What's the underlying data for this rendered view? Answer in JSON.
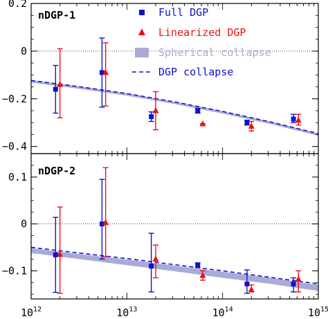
{
  "chart_data": {
    "type": "scatter",
    "x_scale": "log",
    "xlim": [
      1000000000000.0,
      1000000000000000.0
    ],
    "x_tick_labels": [
      {
        "value": 1000000000000.0,
        "base": "10",
        "exp": "12"
      },
      {
        "value": 10000000000000.0,
        "base": "10",
        "exp": "13"
      },
      {
        "value": 100000000000000.0,
        "base": "10",
        "exp": "14"
      },
      {
        "value": 1000000000000000.0,
        "base": "10",
        "exp": "15"
      }
    ],
    "colors": {
      "full_dgp": "#1111cc",
      "linearized_dgp": "#ee1111",
      "spherical_collapse": "#aaaad8",
      "dgp_collapse": "#1111cc"
    },
    "legend": [
      {
        "key": "full_dgp",
        "label": "Full DGP",
        "marker": "square",
        "color": "#1111cc"
      },
      {
        "key": "linearized_dgp",
        "label": "Linearized DGP",
        "marker": "triangle",
        "color": "#ee1111"
      },
      {
        "key": "spherical_collapse",
        "label": "Spherical collapse",
        "marker": "band",
        "color": "#aaaad8"
      },
      {
        "key": "dgp_collapse",
        "label": "DGP collapse",
        "marker": "dashed-line",
        "color": "#1111cc"
      }
    ],
    "panels": [
      {
        "label": "nDGP-1",
        "ylim": [
          -0.43,
          0.2
        ],
        "y_ticks": [
          0.2,
          0,
          -0.2,
          -0.4
        ],
        "y_tick_labels": [
          "0.2",
          "0",
          "−0.2",
          "−0.4"
        ],
        "zero_line": true,
        "series": [
          {
            "key": "full_dgp",
            "points": [
              {
                "x": 1800000000000.0,
                "y": -0.16,
                "ylo": -0.26,
                "yhi": -0.06
              },
              {
                "x": 5500000000000.0,
                "y": -0.09,
                "ylo": -0.235,
                "yhi": 0.055
              },
              {
                "x": 18000000000000.0,
                "y": -0.275,
                "ylo": -0.295,
                "yhi": -0.255
              },
              {
                "x": 55000000000000.0,
                "y": -0.25,
                "ylo": -0.26,
                "yhi": -0.24
              },
              {
                "x": 180000000000000.0,
                "y": -0.3,
                "ylo": -0.31,
                "yhi": -0.29
              },
              {
                "x": 550000000000000.0,
                "y": -0.285,
                "ylo": -0.3,
                "yhi": -0.265
              }
            ]
          },
          {
            "key": "linearized_dgp",
            "points": [
              {
                "x": 2000000000000.0,
                "y": -0.14,
                "ylo": -0.28,
                "yhi": 0.01
              },
              {
                "x": 6000000000000.0,
                "y": -0.09,
                "ylo": -0.23,
                "yhi": 0.035
              },
              {
                "x": 20000000000000.0,
                "y": -0.25,
                "ylo": -0.33,
                "yhi": -0.17
              },
              {
                "x": 62000000000000.0,
                "y": -0.305,
                "ylo": -0.305,
                "yhi": -0.305
              },
              {
                "x": 200000000000000.0,
                "y": -0.315,
                "ylo": -0.335,
                "yhi": -0.295
              },
              {
                "x": 620000000000000.0,
                "y": -0.29,
                "ylo": -0.31,
                "yhi": -0.265
              }
            ]
          },
          {
            "key": "spherical_collapse",
            "x": [
              1000000000000.0,
              3160000000000.0,
              10000000000000.0,
              31600000000000.0,
              100000000000000.0,
              316000000000000.0,
              1000000000000000.0
            ],
            "y_low": [
              -0.132,
              -0.158,
              -0.187,
              -0.222,
              -0.262,
              -0.306,
              -0.355
            ],
            "y_high": [
              -0.122,
              -0.148,
              -0.177,
              -0.212,
              -0.252,
              -0.296,
              -0.345
            ]
          },
          {
            "key": "dgp_collapse",
            "x": [
              1000000000000.0,
              3160000000000.0,
              10000000000000.0,
              31600000000000.0,
              100000000000000.0,
              316000000000000.0,
              1000000000000000.0
            ],
            "y": [
              -0.123,
              -0.149,
              -0.178,
              -0.213,
              -0.253,
              -0.297,
              -0.346
            ]
          }
        ]
      },
      {
        "label": "nDGP-2",
        "ylim": [
          -0.16,
          0.15
        ],
        "y_ticks": [
          0.1,
          0,
          -0.1
        ],
        "y_tick_labels": [
          "0.1",
          "0",
          "−0.1"
        ],
        "zero_line": true,
        "series": [
          {
            "key": "full_dgp",
            "points": [
              {
                "x": 1800000000000.0,
                "y": -0.066,
                "ylo": -0.146,
                "yhi": 0.014
              },
              {
                "x": 5500000000000.0,
                "y": 0.0,
                "ylo": -0.075,
                "yhi": 0.095
              },
              {
                "x": 18000000000000.0,
                "y": -0.09,
                "ylo": -0.145,
                "yhi": -0.02
              },
              {
                "x": 55000000000000.0,
                "y": -0.088,
                "ylo": -0.093,
                "yhi": -0.083
              },
              {
                "x": 180000000000000.0,
                "y": -0.128,
                "ylo": -0.148,
                "yhi": -0.098
              },
              {
                "x": 550000000000000.0,
                "y": -0.128,
                "ylo": -0.145,
                "yhi": -0.115
              }
            ]
          },
          {
            "key": "linearized_dgp",
            "points": [
              {
                "x": 2000000000000.0,
                "y": -0.065,
                "ylo": -0.148,
                "yhi": 0.036
              },
              {
                "x": 6000000000000.0,
                "y": 0.003,
                "ylo": -0.07,
                "yhi": 0.12
              },
              {
                "x": 20000000000000.0,
                "y": -0.075,
                "ylo": -0.115,
                "yhi": -0.045
              },
              {
                "x": 62000000000000.0,
                "y": -0.11,
                "ylo": -0.12,
                "yhi": -0.1
              },
              {
                "x": 200000000000000.0,
                "y": -0.14,
                "ylo": -0.145,
                "yhi": -0.13
              },
              {
                "x": 620000000000000.0,
                "y": -0.118,
                "ylo": -0.145,
                "yhi": -0.1
              }
            ]
          },
          {
            "key": "spherical_collapse",
            "x": [
              1000000000000.0,
              3160000000000.0,
              10000000000000.0,
              31600000000000.0,
              100000000000000.0,
              316000000000000.0,
              1000000000000000.0
            ],
            "y_low": [
              -0.062,
              -0.075,
              -0.088,
              -0.101,
              -0.115,
              -0.128,
              -0.143
            ],
            "y_high": [
              -0.052,
              -0.064,
              -0.076,
              -0.089,
              -0.102,
              -0.115,
              -0.13
            ]
          },
          {
            "key": "dgp_collapse",
            "x": [
              1000000000000.0,
              3160000000000.0,
              10000000000000.0,
              31600000000000.0,
              100000000000000.0,
              316000000000000.0,
              1000000000000000.0
            ],
            "y": [
              -0.05,
              -0.062,
              -0.074,
              -0.087,
              -0.1,
              -0.114,
              -0.128
            ]
          }
        ]
      }
    ]
  }
}
